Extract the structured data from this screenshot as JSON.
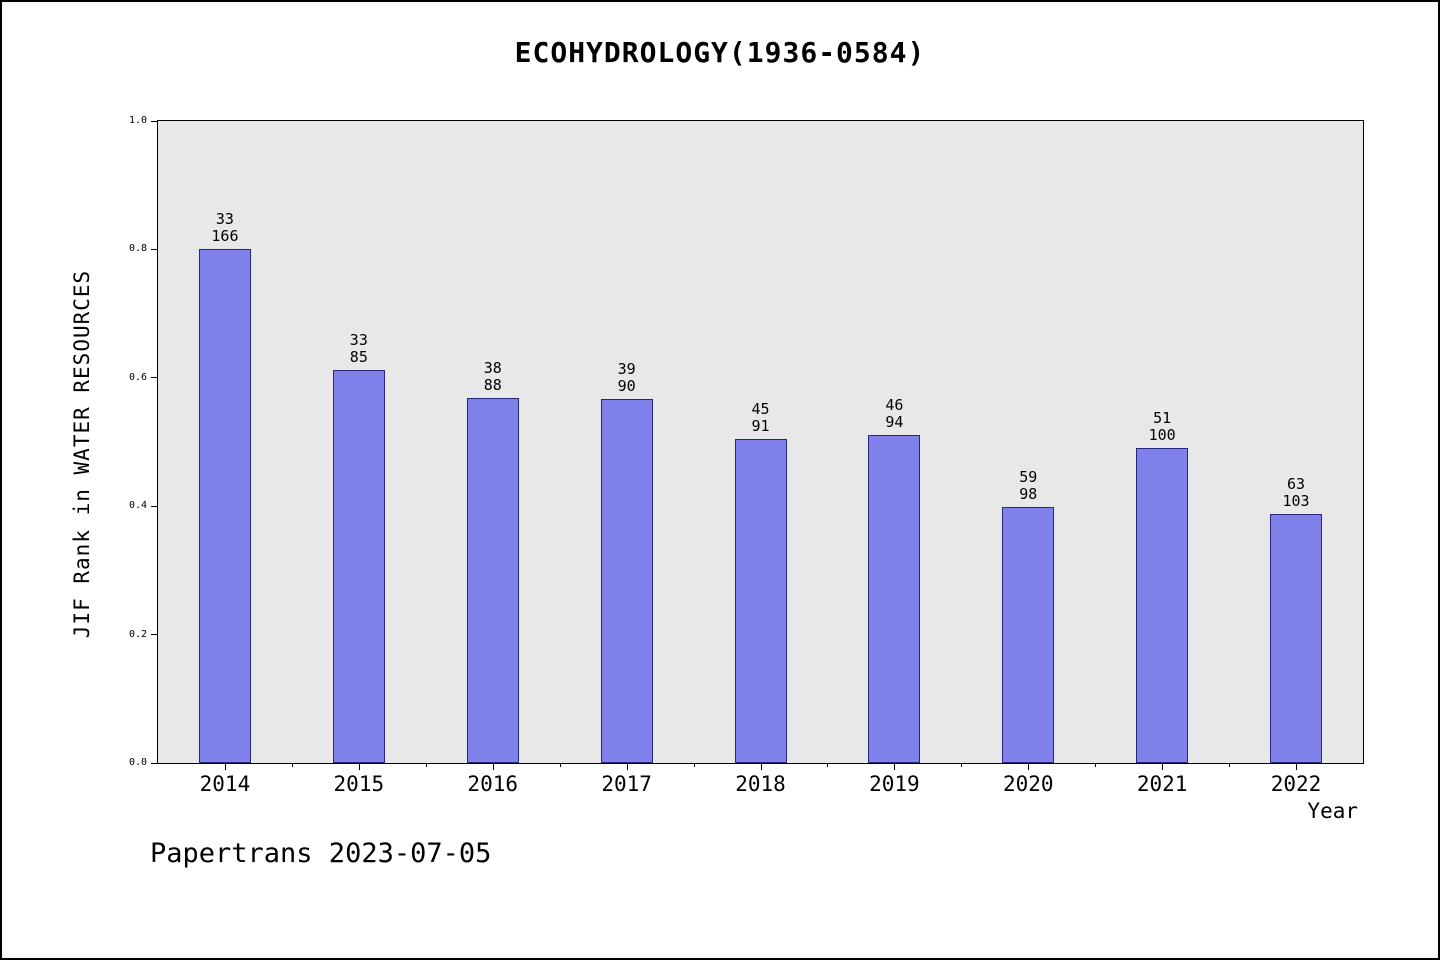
{
  "footer": "Papertrans 2023-07-05",
  "chart_data": {
    "type": "bar",
    "title": "ECOHYDROLOGY(1936-0584)",
    "xlabel": "Year",
    "ylabel": "JIF Rank in WATER RESOURCES",
    "categories": [
      "2014",
      "2015",
      "2016",
      "2017",
      "2018",
      "2019",
      "2020",
      "2021",
      "2022"
    ],
    "ranks": [
      33,
      33,
      38,
      39,
      45,
      46,
      59,
      51,
      63
    ],
    "totals": [
      166,
      85,
      88,
      90,
      91,
      94,
      98,
      100,
      103
    ],
    "values": [
      0.801,
      0.612,
      0.568,
      0.567,
      0.505,
      0.511,
      0.398,
      0.49,
      0.388
    ],
    "ylim": [
      0.0,
      1.0
    ],
    "yticks": [
      "0.0",
      "0.2",
      "0.4",
      "0.6",
      "0.8",
      "1.0"
    ],
    "grid": false,
    "legend": "none",
    "bar_label_meaning": "JIF rank over total journals in category",
    "colors": {
      "bar_fill": "#8181ec",
      "bar_edge": "#26267a",
      "plot_bg": "#e8e8e8",
      "axis": "#000000"
    }
  }
}
